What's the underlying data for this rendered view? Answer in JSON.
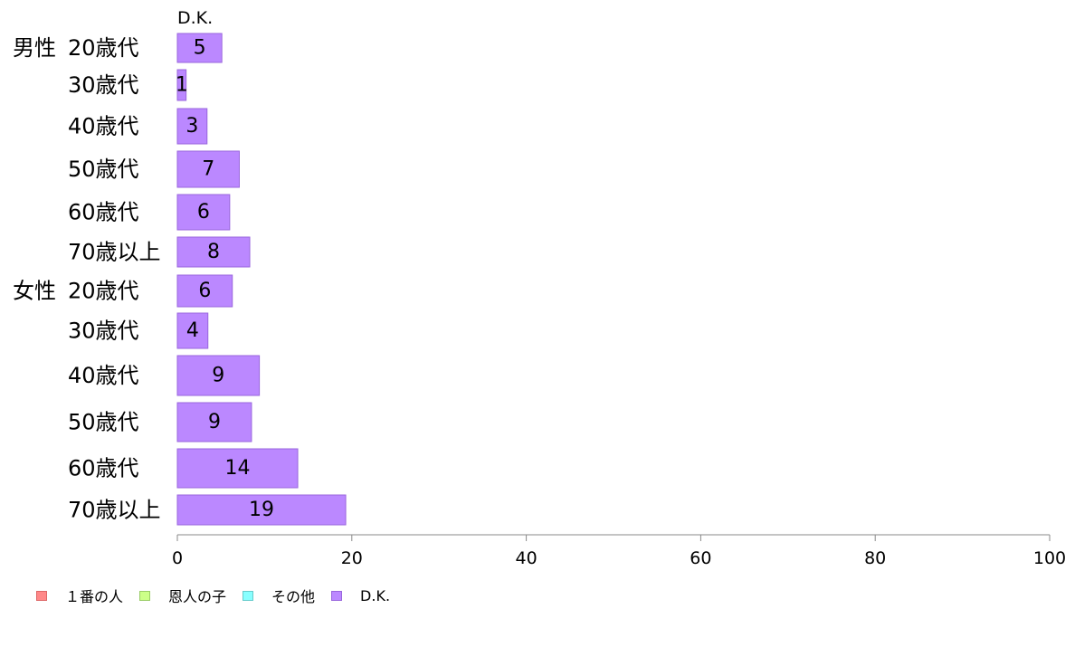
{
  "chart_data": {
    "type": "bar",
    "orientation": "horizontal",
    "title": "",
    "xlabel": "",
    "ylabel": "",
    "xlim": [
      0,
      100
    ],
    "x_ticks": [
      "0",
      "20",
      "40",
      "60",
      "80",
      "100"
    ],
    "grid": false,
    "legend_position": "bottom-left",
    "series_header": "D.K.",
    "group_labels": [
      "男性",
      "女性"
    ],
    "categories": [
      {
        "group": "男性",
        "label": "20歳代"
      },
      {
        "group": "",
        "label": "30歳代"
      },
      {
        "group": "",
        "label": "40歳代"
      },
      {
        "group": "",
        "label": "50歳代"
      },
      {
        "group": "",
        "label": "60歳代"
      },
      {
        "group": "",
        "label": "70歳以上"
      },
      {
        "group": "女性",
        "label": "20歳代"
      },
      {
        "group": "",
        "label": "30歳代"
      },
      {
        "group": "",
        "label": "40歳代"
      },
      {
        "group": "",
        "label": "50歳代"
      },
      {
        "group": "",
        "label": "60歳代"
      },
      {
        "group": "",
        "label": "70歳以上"
      }
    ],
    "series": [
      {
        "name": "D.K.",
        "color": "#bb88ff",
        "border": "#9966dd",
        "values": [
          5.1,
          1.0,
          3.4,
          7.1,
          6.0,
          8.3,
          6.3,
          3.5,
          9.4,
          8.5,
          13.8,
          19.3
        ],
        "labels": [
          "5",
          "1",
          "3",
          "7",
          "6",
          "8",
          "6",
          "4",
          "9",
          "9",
          "14",
          "19"
        ]
      }
    ],
    "legend": [
      {
        "label": "１番の人",
        "color": "#ff8888",
        "border": "#dd6666"
      },
      {
        "label": "恩人の子",
        "color": "#ccff88",
        "border": "#99cc66"
      },
      {
        "label": "その他",
        "color": "#88ffff",
        "border": "#66cccc"
      },
      {
        "label": "D.K.",
        "color": "#bb88ff",
        "border": "#9966dd"
      }
    ]
  }
}
